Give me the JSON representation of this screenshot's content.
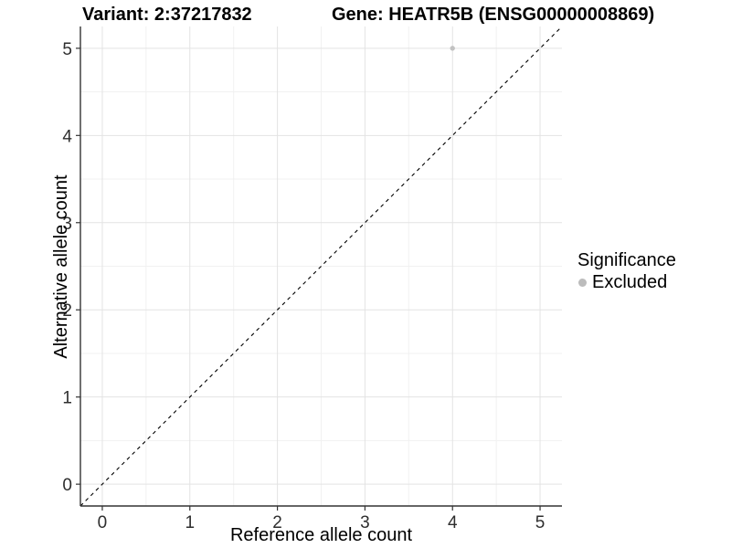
{
  "chart_data": {
    "type": "scatter",
    "title_left": "Variant: 2:37217832",
    "title_right": "Gene: HEATR5B (ENSG00000008869)",
    "xlabel": "Reference allele count",
    "ylabel": "Alternative allele count",
    "xlim": [
      -0.25,
      5.25
    ],
    "ylim": [
      -0.25,
      5.25
    ],
    "x_ticks": [
      0,
      1,
      2,
      3,
      4,
      5
    ],
    "y_ticks": [
      0,
      1,
      2,
      3,
      4,
      5
    ],
    "minor_ticks": [
      0.5,
      1.5,
      2.5,
      3.5,
      4.5
    ],
    "grid": true,
    "points": [
      {
        "x": 4,
        "y": 5,
        "series": "Excluded"
      }
    ],
    "identity_line": {
      "style": "dashed",
      "x1": -0.25,
      "y1": -0.25,
      "x2": 5.25,
      "y2": 5.25
    },
    "legend": {
      "title": "Significance",
      "position": "right",
      "entries": [
        {
          "label": "Excluded",
          "color": "#bcbcbc"
        }
      ]
    },
    "colors": {
      "background": "#ffffff",
      "grid_major": "#e3e3e3",
      "grid_minor": "#f1f1f1",
      "axis_line": "#333333",
      "tick_mark": "#333333",
      "tick_text": "#2e2e2e",
      "identity_line": "#000000",
      "point": "#c2c2c2"
    }
  }
}
